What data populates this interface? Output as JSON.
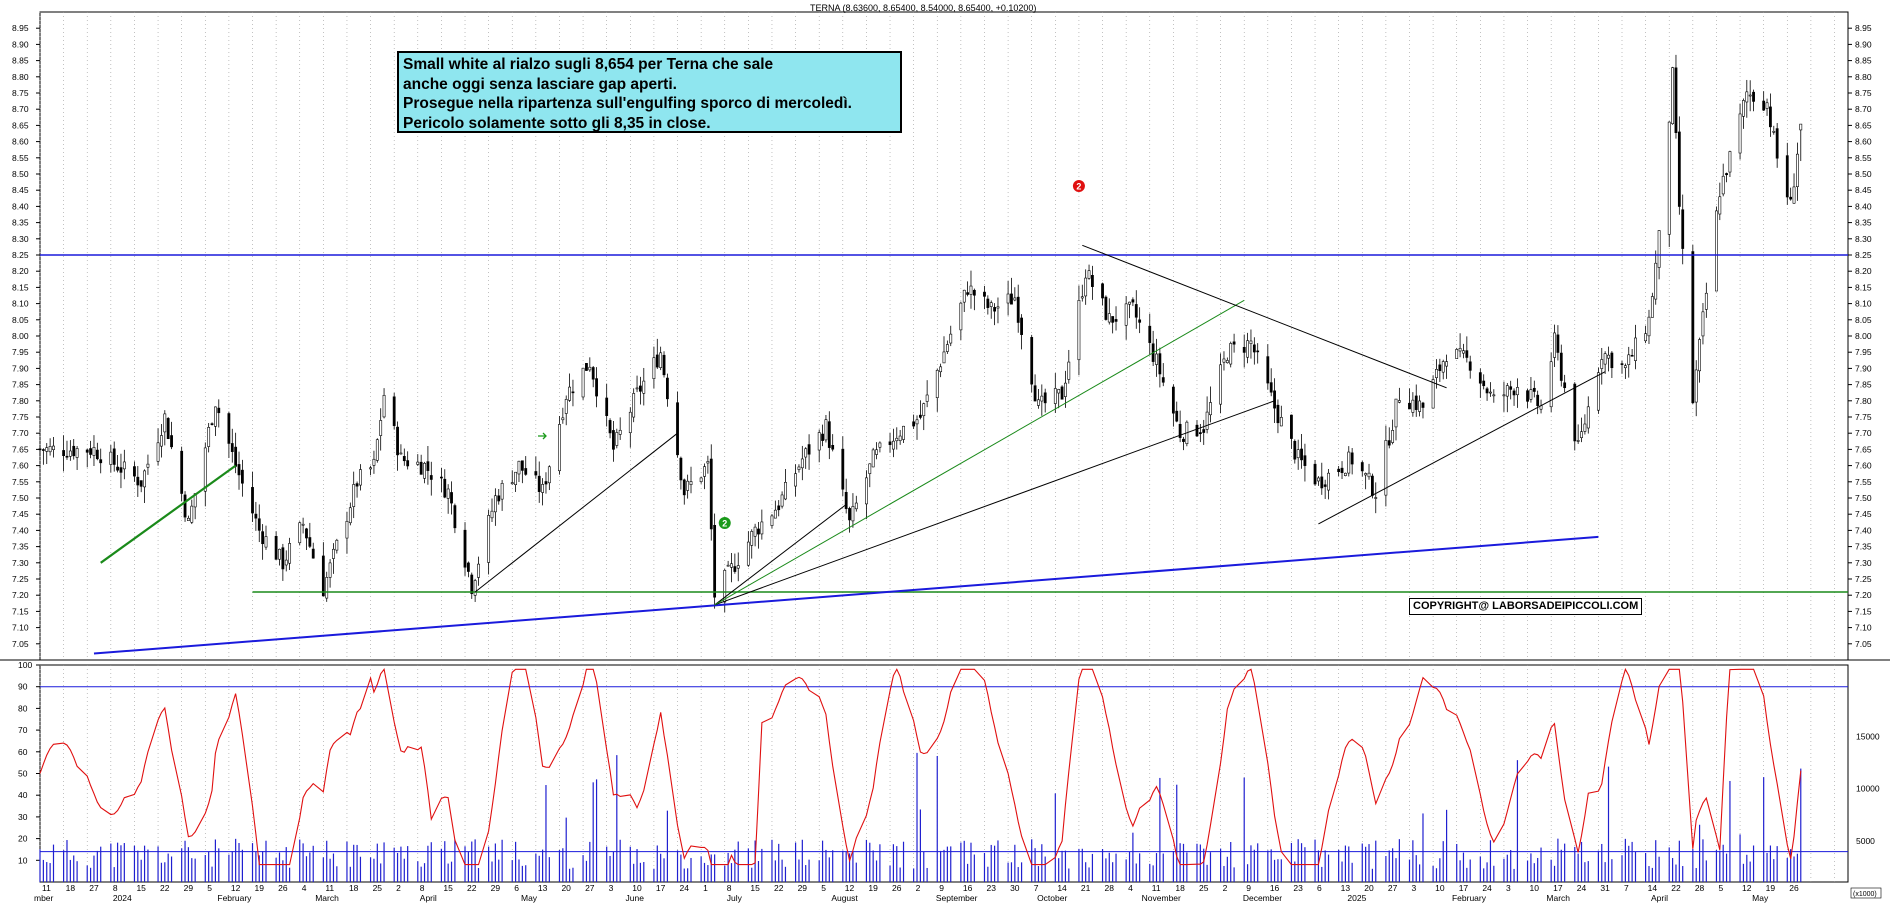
{
  "chart_data": [
    {
      "type": "candlestick",
      "title": "TERNA (8.63600, 8.65400, 8.54000, 8.65400, +0.10200)",
      "ylim": [
        7.0,
        9.0
      ],
      "y_ticks": [
        "7.05",
        "7.10",
        "7.15",
        "7.20",
        "7.25",
        "7.30",
        "7.35",
        "7.40",
        "7.45",
        "7.50",
        "7.55",
        "7.60",
        "7.65",
        "7.70",
        "7.75",
        "7.80",
        "7.85",
        "7.90",
        "7.95",
        "8.00",
        "8.05",
        "8.10",
        "8.15",
        "8.20",
        "8.25",
        "8.30",
        "8.35",
        "8.40",
        "8.45",
        "8.50",
        "8.55",
        "8.60",
        "8.65",
        "8.70",
        "8.75",
        "8.80",
        "8.85",
        "8.90",
        "8.95"
      ],
      "grid": "vertical dotted",
      "last_candle": {
        "open": 8.636,
        "high": 8.654,
        "low": 8.54,
        "close": 8.654,
        "change": 0.102
      },
      "horizontal_levels": [
        {
          "price": 8.25,
          "color": "#1a1adc"
        },
        {
          "price": 7.21,
          "color": "#1a8a1a"
        }
      ],
      "trendlines": [
        {
          "from": [
            "2023-12-29",
            7.3
          ],
          "to": [
            "2024-02-07",
            7.6
          ],
          "color": "#1a8a1a"
        },
        {
          "from": [
            "2023-12-27",
            7.02
          ],
          "to": [
            "2025-03-17",
            7.38
          ],
          "color": "#1a1adc"
        },
        {
          "from": [
            "2024-04-18",
            7.21
          ],
          "to": [
            "2024-06-17",
            7.7
          ],
          "color": "#000000"
        },
        {
          "from": [
            "2024-06-28",
            7.17
          ],
          "to": [
            "2024-08-06",
            7.48
          ],
          "color": "#000000"
        },
        {
          "from": [
            "2024-06-28",
            7.17
          ],
          "to": [
            "2024-12-11",
            7.8
          ],
          "color": "#000000"
        },
        {
          "from": [
            "2024-06-28",
            7.17
          ],
          "to": [
            "2024-12-02",
            8.11
          ],
          "color": "#1a8a1a"
        },
        {
          "from": [
            "2024-10-15",
            8.28
          ],
          "to": [
            "2025-01-31",
            7.84
          ],
          "color": "#000000"
        },
        {
          "from": [
            "2024-12-24",
            7.42
          ],
          "to": [
            "2025-03-19",
            7.89
          ],
          "color": "#000000"
        }
      ],
      "markers": [
        {
          "label": "2",
          "date": "2024-10-14",
          "color": "#e01010"
        },
        {
          "label": "2",
          "date": "2024-07-01",
          "color": "#1a9a1a"
        }
      ],
      "anchor_points": [
        [
          "2023-12-27",
          7.65
        ],
        [
          "2024-01-10",
          7.55
        ],
        [
          "2024-01-17",
          7.75
        ],
        [
          "2024-01-24",
          7.42
        ],
        [
          "2024-02-01",
          7.8
        ],
        [
          "2024-02-07",
          7.6
        ],
        [
          "2024-02-14",
          7.4
        ],
        [
          "2024-02-21",
          7.3
        ],
        [
          "2024-02-27",
          7.42
        ],
        [
          "2024-03-04",
          7.22
        ],
        [
          "2024-03-11",
          7.45
        ],
        [
          "2024-03-14",
          7.55
        ],
        [
          "2024-03-19",
          7.6
        ],
        [
          "2024-03-22",
          7.82
        ],
        [
          "2024-03-27",
          7.62
        ],
        [
          "2024-04-03",
          7.6
        ],
        [
          "2024-04-10",
          7.52
        ],
        [
          "2024-04-17",
          7.23
        ],
        [
          "2024-04-24",
          7.5
        ],
        [
          "2024-05-01",
          7.6
        ],
        [
          "2024-05-08",
          7.52
        ],
        [
          "2024-05-15",
          7.82
        ],
        [
          "2024-05-22",
          7.92
        ],
        [
          "2024-05-29",
          7.65
        ],
        [
          "2024-06-05",
          7.82
        ],
        [
          "2024-06-12",
          7.95
        ],
        [
          "2024-06-19",
          7.52
        ],
        [
          "2024-06-26",
          7.6
        ],
        [
          "2024-06-28",
          7.2
        ],
        [
          "2024-07-03",
          7.28
        ],
        [
          "2024-07-10",
          7.4
        ],
        [
          "2024-07-17",
          7.48
        ],
        [
          "2024-07-24",
          7.62
        ],
        [
          "2024-07-31",
          7.72
        ],
        [
          "2024-08-07",
          7.42
        ],
        [
          "2024-08-14",
          7.62
        ],
        [
          "2024-08-21",
          7.7
        ],
        [
          "2024-08-28",
          7.75
        ],
        [
          "2024-09-04",
          7.95
        ],
        [
          "2024-09-11",
          8.15
        ],
        [
          "2024-09-18",
          8.08
        ],
        [
          "2024-09-25",
          8.12
        ],
        [
          "2024-10-02",
          7.78
        ],
        [
          "2024-10-09",
          7.82
        ],
        [
          "2024-10-16",
          8.2
        ],
        [
          "2024-10-23",
          8.05
        ],
        [
          "2024-10-30",
          8.08
        ],
        [
          "2024-11-06",
          7.92
        ],
        [
          "2024-11-13",
          7.7
        ],
        [
          "2024-11-20",
          7.72
        ],
        [
          "2024-11-27",
          7.95
        ],
        [
          "2024-12-04",
          7.98
        ],
        [
          "2024-12-11",
          7.78
        ],
        [
          "2024-12-18",
          7.62
        ],
        [
          "2024-12-24",
          7.55
        ],
        [
          "2025-01-03",
          7.62
        ],
        [
          "2025-01-10",
          7.52
        ],
        [
          "2025-01-17",
          7.82
        ],
        [
          "2025-01-24",
          7.78
        ],
        [
          "2025-01-31",
          7.95
        ],
        [
          "2025-02-07",
          7.92
        ],
        [
          "2025-02-14",
          7.8
        ],
        [
          "2025-02-21",
          7.85
        ],
        [
          "2025-02-28",
          7.78
        ],
        [
          "2025-03-04",
          7.98
        ],
        [
          "2025-03-11",
          7.65
        ],
        [
          "2025-03-18",
          7.95
        ],
        [
          "2025-03-25",
          7.9
        ],
        [
          "2025-04-01",
          8.05
        ],
        [
          "2025-04-04",
          8.3
        ],
        [
          "2025-04-08",
          8.8
        ],
        [
          "2025-04-10",
          8.4
        ],
        [
          "2025-04-14",
          7.8
        ],
        [
          "2025-04-17",
          8.05
        ],
        [
          "2025-04-22",
          8.45
        ],
        [
          "2025-04-25",
          8.55
        ],
        [
          "2025-04-30",
          8.75
        ],
        [
          "2025-05-06",
          8.72
        ],
        [
          "2025-05-09",
          8.55
        ],
        [
          "2025-05-13",
          8.4
        ],
        [
          "2025-05-16",
          8.654
        ]
      ]
    },
    {
      "type": "line+bar",
      "ylim": [
        0,
        100
      ],
      "y_ticks": [
        "10",
        "20",
        "30",
        "40",
        "50",
        "60",
        "70",
        "80",
        "90",
        "100"
      ],
      "right_ticks": [
        "5000",
        "10000",
        "15000"
      ],
      "levels": [
        90,
        14
      ],
      "series": [
        {
          "kind": "line",
          "color": "#e01010"
        },
        {
          "kind": "bar",
          "color": "#2020d0"
        }
      ]
    }
  ],
  "x_axis": {
    "start": "2023-12-11",
    "end": "2025-05-30",
    "day_ticks": [
      "11",
      "18",
      "27",
      "8",
      "15",
      "22",
      "29",
      "5",
      "12",
      "19",
      "26",
      "4",
      "11",
      "18",
      "25",
      "2",
      "8",
      "15",
      "22",
      "29",
      "6",
      "13",
      "20",
      "27",
      "3",
      "10",
      "17",
      "24",
      "1",
      "8",
      "15",
      "22",
      "29",
      "5",
      "12",
      "19",
      "26",
      "2",
      "9",
      "16",
      "23",
      "30",
      "7",
      "14",
      "21",
      "28",
      "4",
      "11",
      "18",
      "25",
      "2",
      "9",
      "16",
      "23",
      "6",
      "13",
      "20",
      "27",
      "3",
      "10",
      "17",
      "24",
      "3",
      "10",
      "17",
      "24",
      "31",
      "7",
      "14",
      "22",
      "28",
      "5",
      "12",
      "19",
      "26"
    ],
    "month_labels": [
      "mber",
      "2024",
      "February",
      "March",
      "April",
      "May",
      "June",
      "July",
      "August",
      "September",
      "October",
      "November",
      "December",
      "2025",
      "February",
      "March",
      "April",
      "May"
    ]
  },
  "annotation": {
    "lines": [
      "Small white al rialzo sugli 8,654 per Terna che sale",
      "anche oggi senza lasciare gap aperti.",
      "Prosegue nella ripartenza sull'engulfing sporco di mercoledì.",
      "Pericolo solamente sotto gli 8,35 in close."
    ],
    "background": "#8fe6ef"
  },
  "copyright": "COPYRIGHT@ LABORSADEIPICCOLI.COM",
  "vol_unit_label": "(x1000)",
  "colors": {
    "candle": "#000000",
    "blue_line": "#1a1adc",
    "green_line": "#1a8a1a",
    "oscillator": "#e01010",
    "volume": "#2020d0"
  }
}
